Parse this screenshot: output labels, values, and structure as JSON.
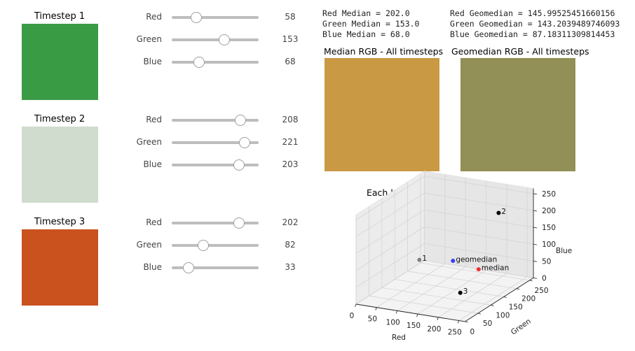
{
  "timesteps": [
    {
      "title": "Timestep 1",
      "color": "#3a9b45",
      "sliders": [
        {
          "label": "Red",
          "value": 58
        },
        {
          "label": "Green",
          "value": 153
        },
        {
          "label": "Blue",
          "value": 68
        }
      ]
    },
    {
      "title": "Timestep 2",
      "color": "#d0dccd",
      "sliders": [
        {
          "label": "Red",
          "value": 208
        },
        {
          "label": "Green",
          "value": 221
        },
        {
          "label": "Blue",
          "value": 203
        }
      ]
    },
    {
      "title": "Timestep 3",
      "color": "#c9521f",
      "sliders": [
        {
          "label": "Red",
          "value": 202
        },
        {
          "label": "Green",
          "value": 82
        },
        {
          "label": "Blue",
          "value": 33
        }
      ]
    }
  ],
  "slider_max": 255,
  "stats": {
    "median_lines": [
      "Red Median = 202.0",
      "Green Median = 153.0",
      "Blue Median = 68.0"
    ],
    "geomedian_lines": [
      "Red Geomedian = 145.99525451660156",
      "Green Geomedian = 143.2039489746093",
      "Blue Geomedian = 87.18311309814453"
    ]
  },
  "median_panel": {
    "title": "Median RGB - All timesteps",
    "color": "#ca9944"
  },
  "geomedian_panel": {
    "title": "Geomedian RGB - All timesteps",
    "color": "#928f57"
  },
  "plot3d": {
    "title": "Each band represents a dimension.",
    "x_label": "Red",
    "y_label": "Green",
    "z_label": "Blue",
    "x_ticks": [
      "0",
      "50",
      "100",
      "150",
      "200",
      "250"
    ],
    "y_ticks": [
      "0",
      "50",
      "100",
      "150",
      "200",
      "250"
    ],
    "z_ticks": [
      "0",
      "50",
      "100",
      "150",
      "200",
      "250"
    ],
    "points": [
      {
        "label": "1",
        "color": "#808080",
        "r": 58,
        "g": 153,
        "b": 68
      },
      {
        "label": "2",
        "color": "#000000",
        "r": 208,
        "g": 221,
        "b": 203
      },
      {
        "label": "3",
        "color": "#000000",
        "r": 202,
        "g": 82,
        "b": 33
      },
      {
        "label": "geomedian",
        "color": "#3b3bff",
        "r": 146,
        "g": 143,
        "b": 87
      },
      {
        "label": "median",
        "color": "#ee3333",
        "r": 202,
        "g": 153,
        "b": 68
      }
    ]
  }
}
